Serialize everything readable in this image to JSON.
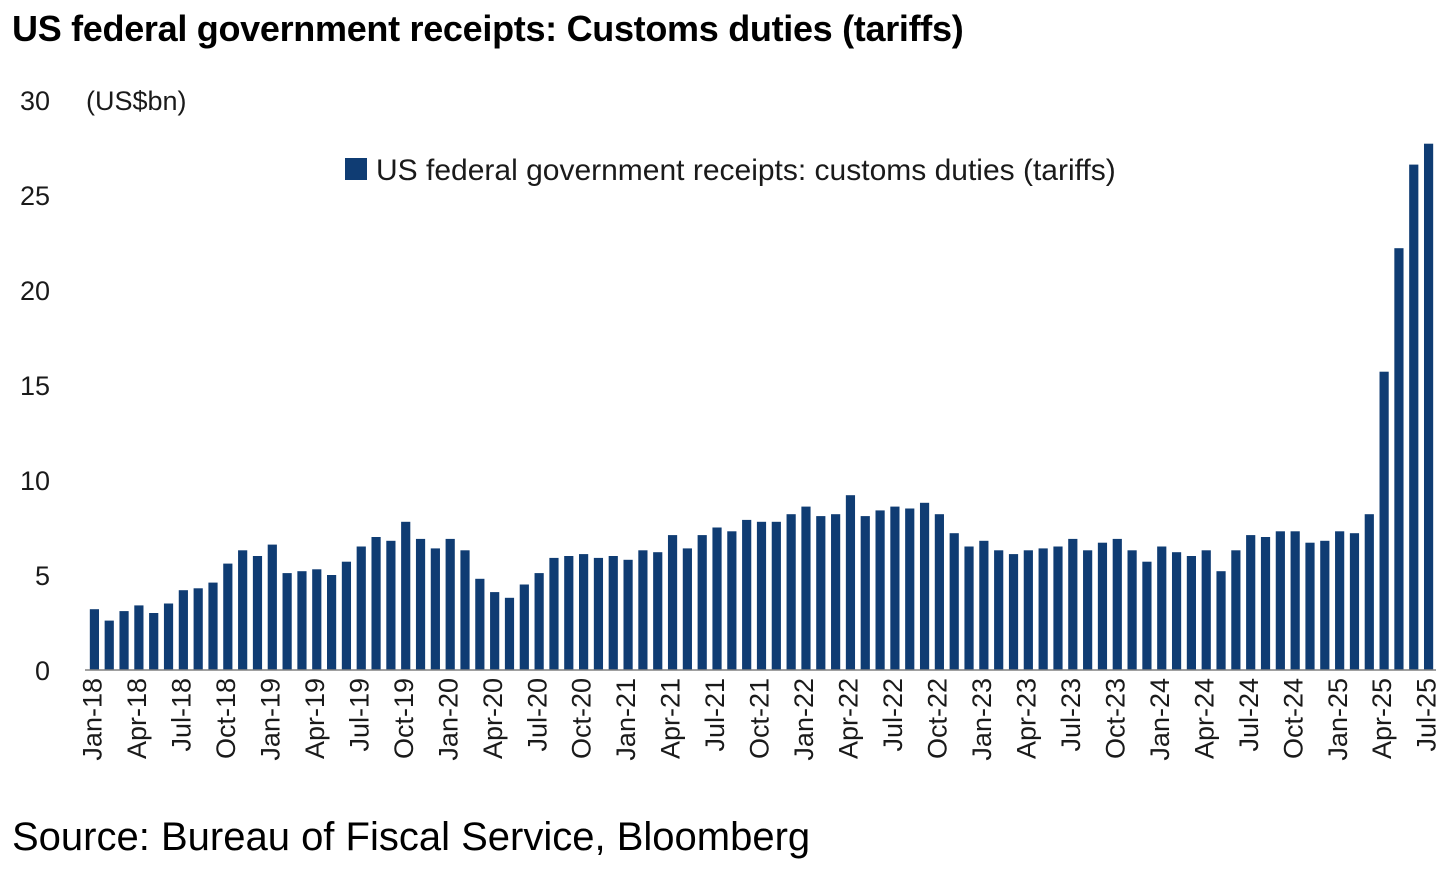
{
  "title": "US federal government receipts: Customs duties (tariffs)",
  "source": "Source: Bureau of Fiscal Service, Bloomberg",
  "colors": {
    "bar": "#0f3c73",
    "axis": "#808080"
  },
  "chart_data": {
    "type": "bar",
    "ylabel": "(US$bn)",
    "ylim": [
      0,
      30
    ],
    "yticks": [
      0,
      5,
      10,
      15,
      20,
      25,
      30
    ],
    "grid": false,
    "legend": {
      "label": "US federal government receipts: customs duties (tariffs)",
      "position": "top-right"
    },
    "tick_labels": [
      "Jan-18",
      "Apr-18",
      "Jul-18",
      "Oct-18",
      "Jan-19",
      "Apr-19",
      "Jul-19",
      "Oct-19",
      "Jan-20",
      "Apr-20",
      "Jul-20",
      "Oct-20",
      "Jan-21",
      "Apr-21",
      "Jul-21",
      "Oct-21",
      "Jan-22",
      "Apr-22",
      "Jul-22",
      "Oct-22",
      "Jan-23",
      "Apr-23",
      "Jul-23",
      "Oct-23",
      "Jan-24",
      "Apr-24",
      "Jul-24",
      "Oct-24",
      "Jan-25",
      "Apr-25",
      "Jul-25"
    ],
    "categories": [
      "Jan-18",
      "Feb-18",
      "Mar-18",
      "Apr-18",
      "May-18",
      "Jun-18",
      "Jul-18",
      "Aug-18",
      "Sep-18",
      "Oct-18",
      "Nov-18",
      "Dec-18",
      "Jan-19",
      "Feb-19",
      "Mar-19",
      "Apr-19",
      "May-19",
      "Jun-19",
      "Jul-19",
      "Aug-19",
      "Sep-19",
      "Oct-19",
      "Nov-19",
      "Dec-19",
      "Jan-20",
      "Feb-20",
      "Mar-20",
      "Apr-20",
      "May-20",
      "Jun-20",
      "Jul-20",
      "Aug-20",
      "Sep-20",
      "Oct-20",
      "Nov-20",
      "Dec-20",
      "Jan-21",
      "Feb-21",
      "Mar-21",
      "Apr-21",
      "May-21",
      "Jun-21",
      "Jul-21",
      "Aug-21",
      "Sep-21",
      "Oct-21",
      "Nov-21",
      "Dec-21",
      "Jan-22",
      "Feb-22",
      "Mar-22",
      "Apr-22",
      "May-22",
      "Jun-22",
      "Jul-22",
      "Aug-22",
      "Sep-22",
      "Oct-22",
      "Nov-22",
      "Dec-22",
      "Jan-23",
      "Feb-23",
      "Mar-23",
      "Apr-23",
      "May-23",
      "Jun-23",
      "Jul-23",
      "Aug-23",
      "Sep-23",
      "Oct-23",
      "Nov-23",
      "Dec-23",
      "Jan-24",
      "Feb-24",
      "Mar-24",
      "Apr-24",
      "May-24",
      "Jun-24",
      "Jul-24",
      "Aug-24",
      "Sep-24",
      "Oct-24",
      "Nov-24",
      "Dec-24",
      "Jan-25",
      "Feb-25",
      "Mar-25",
      "Apr-25",
      "May-25",
      "Jun-25",
      "Jul-25"
    ],
    "values": [
      3.2,
      2.6,
      3.1,
      3.4,
      3.0,
      3.5,
      4.2,
      4.3,
      4.6,
      5.6,
      6.3,
      6.0,
      6.6,
      5.1,
      5.2,
      5.3,
      5.0,
      5.7,
      6.5,
      7.0,
      6.8,
      7.8,
      6.9,
      6.4,
      6.9,
      6.3,
      4.8,
      4.1,
      3.8,
      4.5,
      5.1,
      5.9,
      6.0,
      6.1,
      5.9,
      6.0,
      5.8,
      6.3,
      6.2,
      7.1,
      6.4,
      7.1,
      7.5,
      7.3,
      7.9,
      7.8,
      7.8,
      8.2,
      8.6,
      8.1,
      8.2,
      9.2,
      8.1,
      8.4,
      8.6,
      8.5,
      8.8,
      8.2,
      7.2,
      6.5,
      6.8,
      6.3,
      6.1,
      6.3,
      6.4,
      6.5,
      6.9,
      6.3,
      6.7,
      6.9,
      6.3,
      5.7,
      6.5,
      6.2,
      6.0,
      6.3,
      5.2,
      6.3,
      7.1,
      7.0,
      7.3,
      7.3,
      6.7,
      6.8,
      7.3,
      7.2,
      8.2,
      15.7,
      22.2,
      26.6,
      27.7
    ]
  }
}
